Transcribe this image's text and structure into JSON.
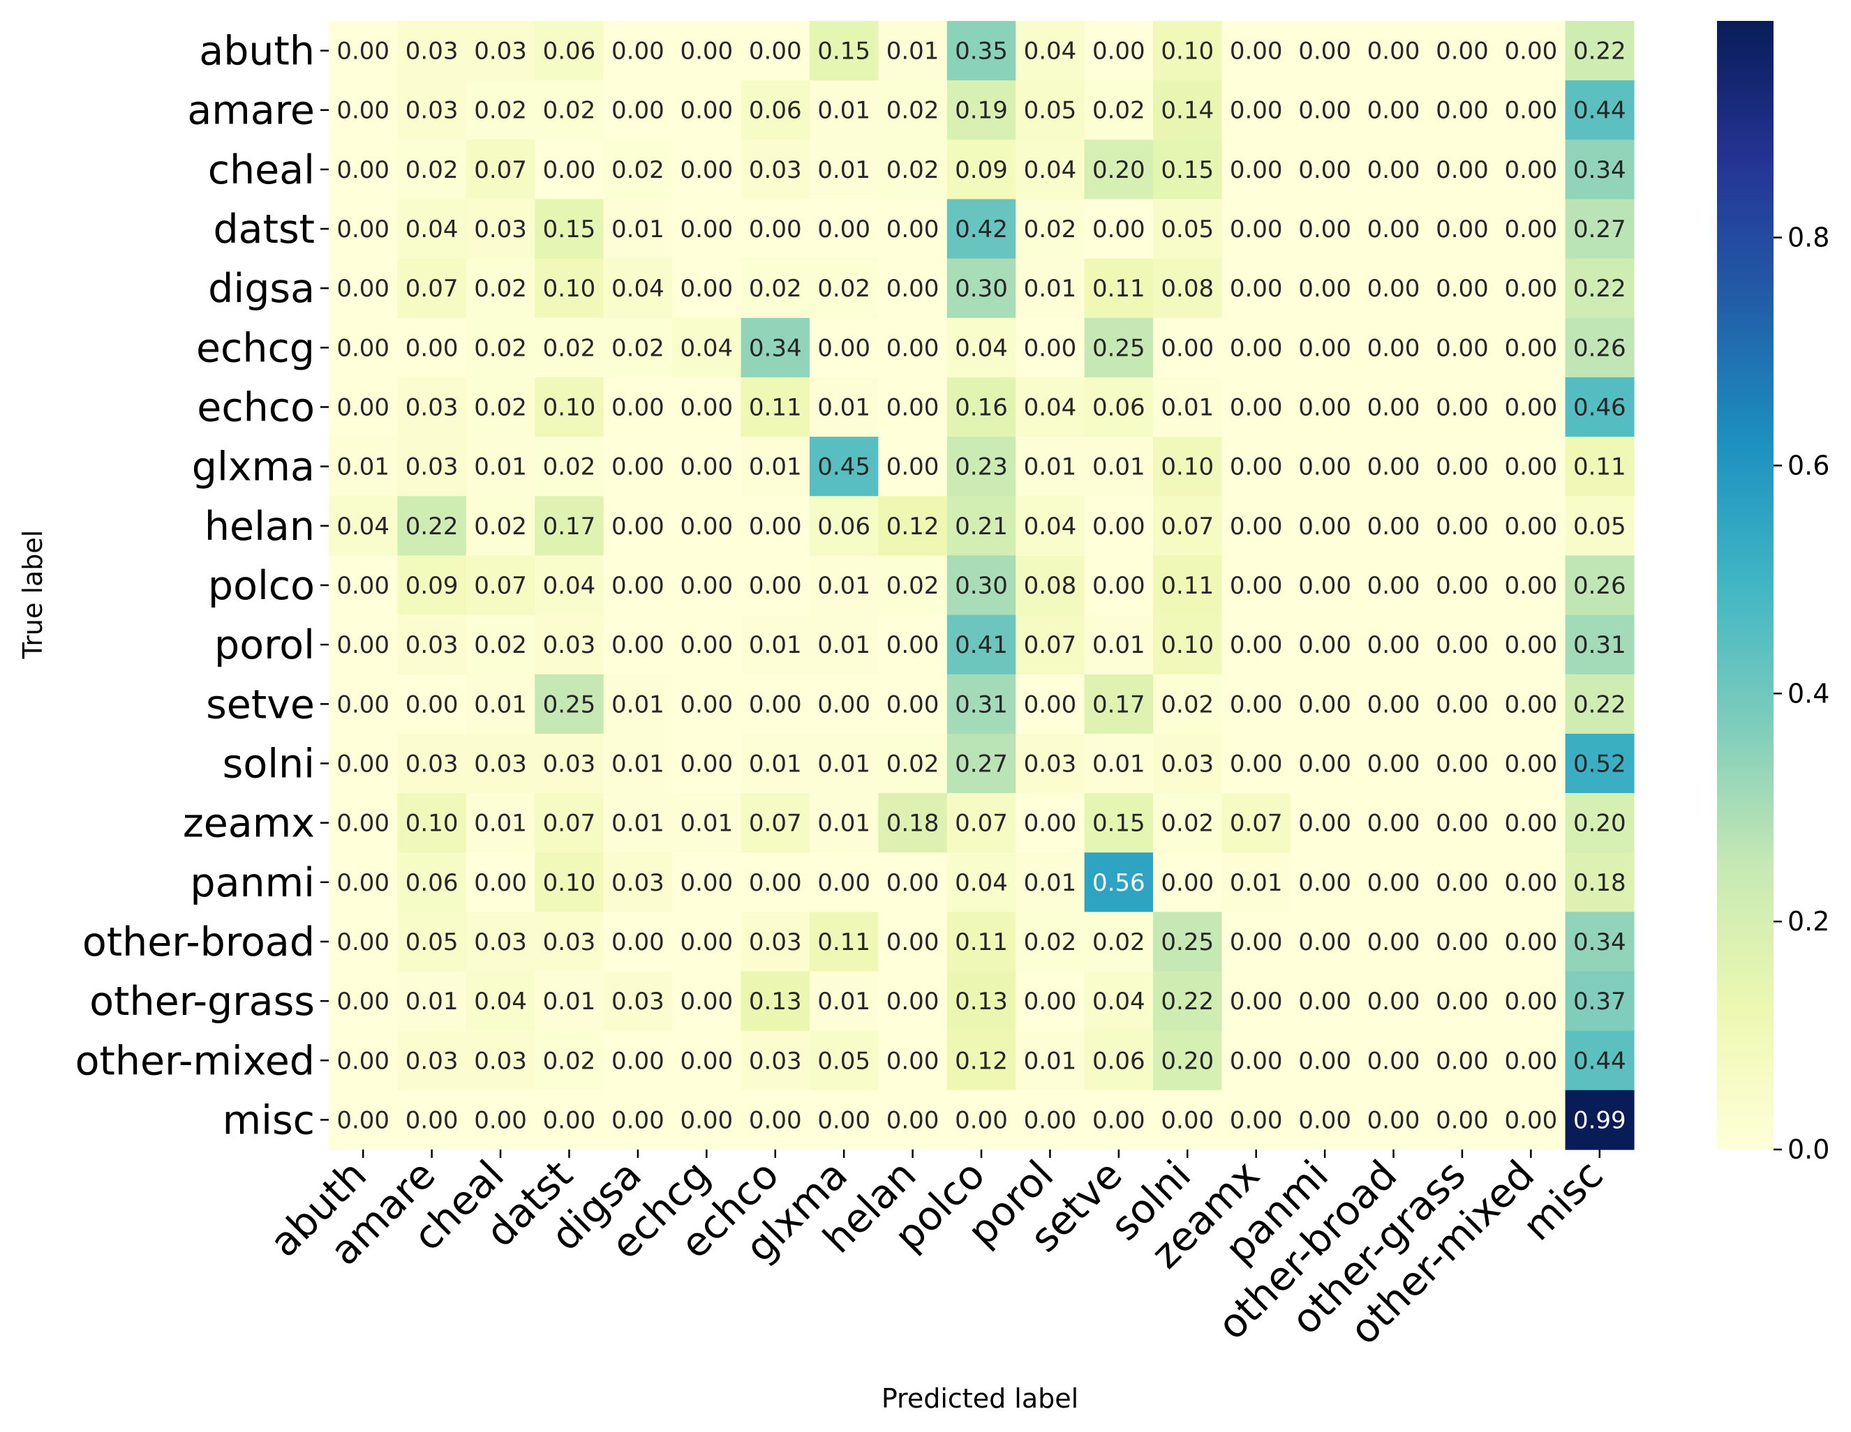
{
  "chart_data": {
    "type": "heatmap",
    "title": "",
    "xlabel": "Predicted label",
    "ylabel": "True label",
    "x_categories": [
      "abuth",
      "amare",
      "cheal",
      "datst",
      "digsa",
      "echcg",
      "echco",
      "glxma",
      "helan",
      "polco",
      "porol",
      "setve",
      "solni",
      "zeamx",
      "panmi",
      "other-broad",
      "other-grass",
      "other-mixed",
      "misc"
    ],
    "y_categories": [
      "abuth",
      "amare",
      "cheal",
      "datst",
      "digsa",
      "echcg",
      "echco",
      "glxma",
      "helan",
      "polco",
      "porol",
      "setve",
      "solni",
      "zeamx",
      "panmi",
      "other-broad",
      "other-grass",
      "other-mixed",
      "misc"
    ],
    "values": [
      [
        0.0,
        0.03,
        0.03,
        0.06,
        0.0,
        0.0,
        0.0,
        0.15,
        0.01,
        0.35,
        0.04,
        0.0,
        0.1,
        0.0,
        0.0,
        0.0,
        0.0,
        0.0,
        0.22
      ],
      [
        0.0,
        0.03,
        0.02,
        0.02,
        0.0,
        0.0,
        0.06,
        0.01,
        0.02,
        0.19,
        0.05,
        0.02,
        0.14,
        0.0,
        0.0,
        0.0,
        0.0,
        0.0,
        0.44
      ],
      [
        0.0,
        0.02,
        0.07,
        0.0,
        0.02,
        0.0,
        0.03,
        0.01,
        0.02,
        0.09,
        0.04,
        0.2,
        0.15,
        0.0,
        0.0,
        0.0,
        0.0,
        0.0,
        0.34
      ],
      [
        0.0,
        0.04,
        0.03,
        0.15,
        0.01,
        0.0,
        0.0,
        0.0,
        0.0,
        0.42,
        0.02,
        0.0,
        0.05,
        0.0,
        0.0,
        0.0,
        0.0,
        0.0,
        0.27
      ],
      [
        0.0,
        0.07,
        0.02,
        0.1,
        0.04,
        0.0,
        0.02,
        0.02,
        0.0,
        0.3,
        0.01,
        0.11,
        0.08,
        0.0,
        0.0,
        0.0,
        0.0,
        0.0,
        0.22
      ],
      [
        0.0,
        0.0,
        0.02,
        0.02,
        0.02,
        0.04,
        0.34,
        0.0,
        0.0,
        0.04,
        0.0,
        0.25,
        0.0,
        0.0,
        0.0,
        0.0,
        0.0,
        0.0,
        0.26
      ],
      [
        0.0,
        0.03,
        0.02,
        0.1,
        0.0,
        0.0,
        0.11,
        0.01,
        0.0,
        0.16,
        0.04,
        0.06,
        0.01,
        0.0,
        0.0,
        0.0,
        0.0,
        0.0,
        0.46
      ],
      [
        0.01,
        0.03,
        0.01,
        0.02,
        0.0,
        0.0,
        0.01,
        0.45,
        0.0,
        0.23,
        0.01,
        0.01,
        0.1,
        0.0,
        0.0,
        0.0,
        0.0,
        0.0,
        0.11
      ],
      [
        0.04,
        0.22,
        0.02,
        0.17,
        0.0,
        0.0,
        0.0,
        0.06,
        0.12,
        0.21,
        0.04,
        0.0,
        0.07,
        0.0,
        0.0,
        0.0,
        0.0,
        0.0,
        0.05
      ],
      [
        0.0,
        0.09,
        0.07,
        0.04,
        0.0,
        0.0,
        0.0,
        0.01,
        0.02,
        0.3,
        0.08,
        0.0,
        0.11,
        0.0,
        0.0,
        0.0,
        0.0,
        0.0,
        0.26
      ],
      [
        0.0,
        0.03,
        0.02,
        0.03,
        0.0,
        0.0,
        0.01,
        0.01,
        0.0,
        0.41,
        0.07,
        0.01,
        0.1,
        0.0,
        0.0,
        0.0,
        0.0,
        0.0,
        0.31
      ],
      [
        0.0,
        0.0,
        0.01,
        0.25,
        0.01,
        0.0,
        0.0,
        0.0,
        0.0,
        0.31,
        0.0,
        0.17,
        0.02,
        0.0,
        0.0,
        0.0,
        0.0,
        0.0,
        0.22
      ],
      [
        0.0,
        0.03,
        0.03,
        0.03,
        0.01,
        0.0,
        0.01,
        0.01,
        0.02,
        0.27,
        0.03,
        0.01,
        0.03,
        0.0,
        0.0,
        0.0,
        0.0,
        0.0,
        0.52
      ],
      [
        0.0,
        0.1,
        0.01,
        0.07,
        0.01,
        0.01,
        0.07,
        0.01,
        0.18,
        0.07,
        0.0,
        0.15,
        0.02,
        0.07,
        0.0,
        0.0,
        0.0,
        0.0,
        0.2
      ],
      [
        0.0,
        0.06,
        0.0,
        0.1,
        0.03,
        0.0,
        0.0,
        0.0,
        0.0,
        0.04,
        0.01,
        0.56,
        0.0,
        0.01,
        0.0,
        0.0,
        0.0,
        0.0,
        0.18
      ],
      [
        0.0,
        0.05,
        0.03,
        0.03,
        0.0,
        0.0,
        0.03,
        0.11,
        0.0,
        0.11,
        0.02,
        0.02,
        0.25,
        0.0,
        0.0,
        0.0,
        0.0,
        0.0,
        0.34
      ],
      [
        0.0,
        0.01,
        0.04,
        0.01,
        0.03,
        0.0,
        0.13,
        0.01,
        0.0,
        0.13,
        0.0,
        0.04,
        0.22,
        0.0,
        0.0,
        0.0,
        0.0,
        0.0,
        0.37
      ],
      [
        0.0,
        0.03,
        0.03,
        0.02,
        0.0,
        0.0,
        0.03,
        0.05,
        0.0,
        0.12,
        0.01,
        0.06,
        0.2,
        0.0,
        0.0,
        0.0,
        0.0,
        0.0,
        0.44
      ],
      [
        0.0,
        0.0,
        0.0,
        0.0,
        0.0,
        0.0,
        0.0,
        0.0,
        0.0,
        0.0,
        0.0,
        0.0,
        0.0,
        0.0,
        0.0,
        0.0,
        0.0,
        0.0,
        0.99
      ]
    ],
    "value_format": "0.00",
    "colormap": "YlGnBu",
    "colorbar": {
      "range": [
        0.0,
        0.99
      ],
      "ticks": [
        0.0,
        0.2,
        0.4,
        0.6,
        0.8
      ],
      "tick_labels": [
        "0.0",
        "0.2",
        "0.4",
        "0.6",
        "0.8"
      ]
    },
    "colormap_stops": [
      "#ffffd9",
      "#edf8b1",
      "#c7e9b4",
      "#7fcdbb",
      "#41b6c4",
      "#1d91c0",
      "#225ea8",
      "#253494",
      "#081d58"
    ]
  }
}
